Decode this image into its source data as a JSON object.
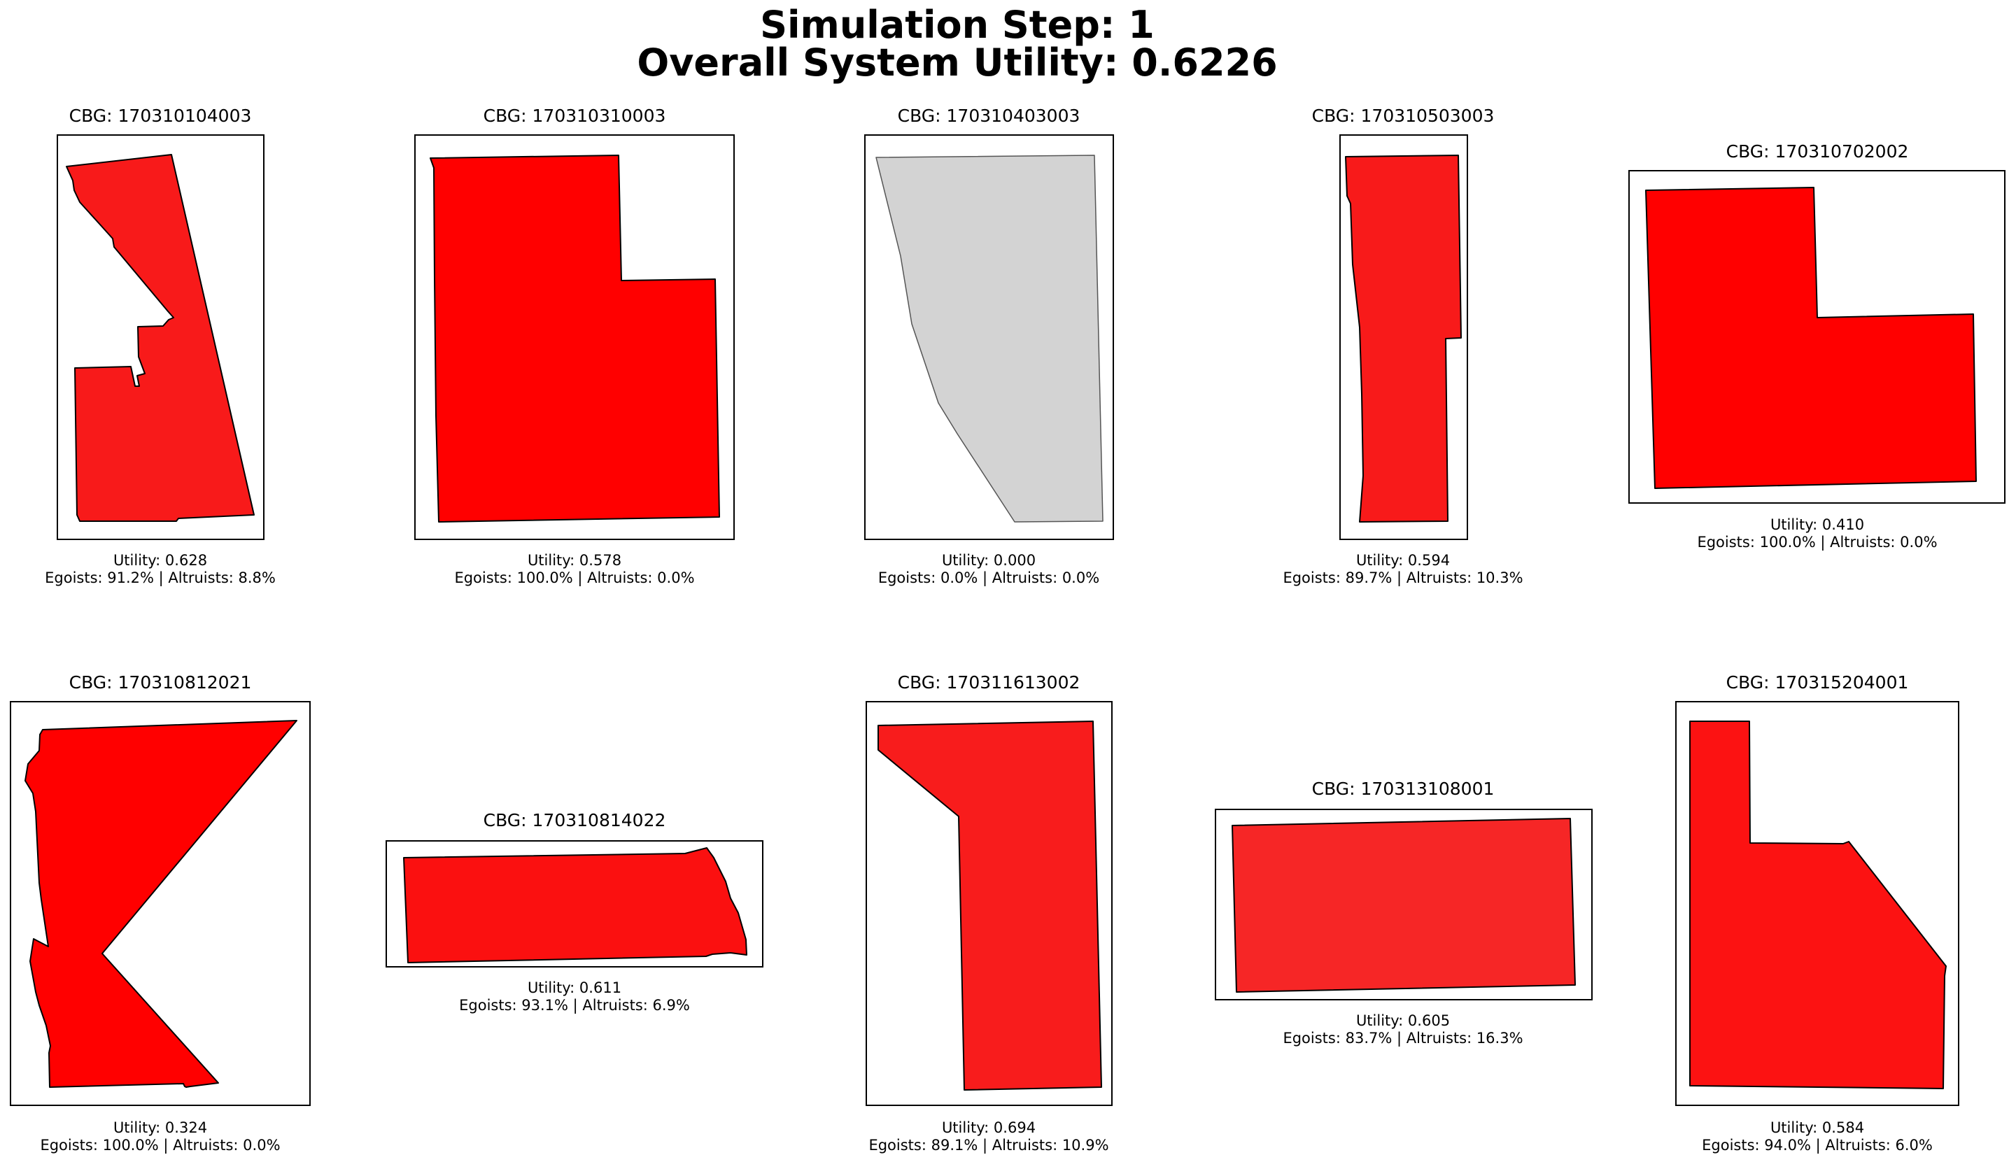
{
  "figure": {
    "title_line1": "Simulation Step: 1",
    "title_line2": "Overall System Utility: 0.6226"
  },
  "chart_data": {
    "type": "map",
    "grid": false,
    "axes_visible": false,
    "colors": {
      "full_red": "#ff0000",
      "mostly_red": "#f81a1a",
      "empty": "#d3d3d3",
      "outline": "#000000"
    },
    "panels": [
      {
        "title": "CBG: 170310104003",
        "utility_text": "Utility: 0.628",
        "composition_text": "Egoists: 91.2% | Altruists: 8.8%",
        "utility": 0.628,
        "egoists_pct": 91.2,
        "altruists_pct": 8.8,
        "fill": "#f81a1a"
      },
      {
        "title": "CBG: 170310310003",
        "utility_text": "Utility: 0.578",
        "composition_text": "Egoists: 100.0% | Altruists: 0.0%",
        "utility": 0.578,
        "egoists_pct": 100.0,
        "altruists_pct": 0.0,
        "fill": "#ff0000"
      },
      {
        "title": "CBG: 170310403003",
        "utility_text": "Utility: 0.000",
        "composition_text": "Egoists: 0.0% | Altruists: 0.0%",
        "utility": 0.0,
        "egoists_pct": 0.0,
        "altruists_pct": 0.0,
        "fill": "#d3d3d3"
      },
      {
        "title": "CBG: 170310503003",
        "utility_text": "Utility: 0.594",
        "composition_text": "Egoists: 89.7% | Altruists: 10.3%",
        "utility": 0.594,
        "egoists_pct": 89.7,
        "altruists_pct": 10.3,
        "fill": "#f81a1a"
      },
      {
        "title": "CBG: 170310702002",
        "utility_text": "Utility: 0.410",
        "composition_text": "Egoists: 100.0% | Altruists: 0.0%",
        "utility": 0.41,
        "egoists_pct": 100.0,
        "altruists_pct": 0.0,
        "fill": "#ff0000"
      },
      {
        "title": "CBG: 170310812021",
        "utility_text": "Utility: 0.324",
        "composition_text": "Egoists: 100.0% | Altruists: 0.0%",
        "utility": 0.324,
        "egoists_pct": 100.0,
        "altruists_pct": 0.0,
        "fill": "#ff0000"
      },
      {
        "title": "CBG: 170310814022",
        "utility_text": "Utility: 0.611",
        "composition_text": "Egoists: 93.1% | Altruists: 6.9%",
        "utility": 0.611,
        "egoists_pct": 93.1,
        "altruists_pct": 6.9,
        "fill": "#fb1010"
      },
      {
        "title": "CBG: 170311613002",
        "utility_text": "Utility: 0.694",
        "composition_text": "Egoists: 89.1% | Altruists: 10.9%",
        "utility": 0.694,
        "egoists_pct": 89.1,
        "altruists_pct": 10.9,
        "fill": "#f81c1c"
      },
      {
        "title": "CBG: 170313108001",
        "utility_text": "Utility: 0.605",
        "composition_text": "Egoists: 83.7% | Altruists: 16.3%",
        "utility": 0.605,
        "egoists_pct": 83.7,
        "altruists_pct": 16.3,
        "fill": "#f62626"
      },
      {
        "title": "CBG: 170315204001",
        "utility_text": "Utility: 0.584",
        "composition_text": "Egoists: 94.0% | Altruists: 6.0%",
        "utility": 0.584,
        "egoists_pct": 94.0,
        "altruists_pct": 6.0,
        "fill": "#fc1212"
      }
    ]
  }
}
